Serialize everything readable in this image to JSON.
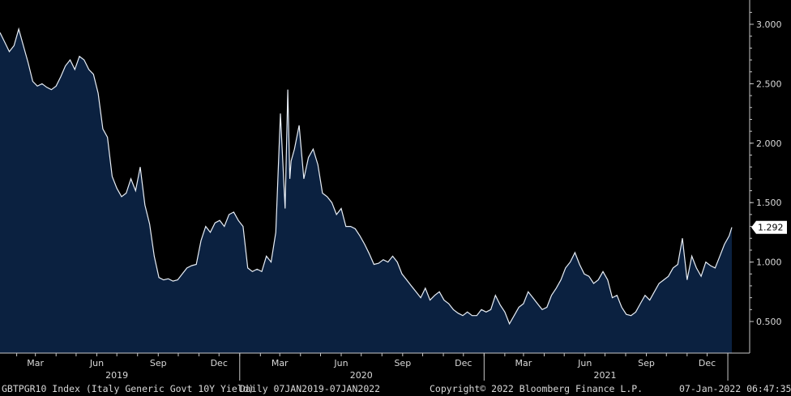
{
  "chart_data": {
    "type": "area",
    "title": "GBTPGR10 Index (Italy Generic Govt 10Y Yield)",
    "frequency": "Daily",
    "date_range": "07JAN2019-07JAN2022",
    "ylim": [
      0.25,
      3.2
    ],
    "y_ticks": [
      "3.000",
      "2.500",
      "2.000",
      "1.500",
      "1.000",
      "0.500"
    ],
    "y_tick_values": [
      3.0,
      2.5,
      2.0,
      1.5,
      1.0,
      0.5
    ],
    "x_tick_labels": [
      "Mar",
      "Jun",
      "Sep",
      "Dec",
      "Mar",
      "Jun",
      "Sep",
      "Dec",
      "Mar",
      "Jun",
      "Sep",
      "Dec"
    ],
    "x_tick_dates": [
      "2019-03-01",
      "2019-06-01",
      "2019-09-01",
      "2019-12-01",
      "2020-03-01",
      "2020-06-01",
      "2020-09-01",
      "2020-12-01",
      "2021-03-01",
      "2021-06-01",
      "2021-09-01",
      "2021-12-01"
    ],
    "year_labels": [
      "2019",
      "2020",
      "2021"
    ],
    "year_dates": [
      "2019-07-01",
      "2020-07-01",
      "2021-07-01"
    ],
    "year_boundaries": [
      "2020-01-01",
      "2021-01-01",
      "2022-01-01"
    ],
    "last_value": "1.292",
    "x": [
      "2019-01-07",
      "2019-01-14",
      "2019-01-21",
      "2019-01-28",
      "2019-02-04",
      "2019-02-11",
      "2019-02-18",
      "2019-02-25",
      "2019-03-04",
      "2019-03-11",
      "2019-03-18",
      "2019-03-25",
      "2019-04-01",
      "2019-04-08",
      "2019-04-15",
      "2019-04-22",
      "2019-04-29",
      "2019-05-06",
      "2019-05-13",
      "2019-05-20",
      "2019-05-27",
      "2019-06-03",
      "2019-06-10",
      "2019-06-17",
      "2019-06-24",
      "2019-07-01",
      "2019-07-08",
      "2019-07-15",
      "2019-07-22",
      "2019-07-29",
      "2019-08-05",
      "2019-08-12",
      "2019-08-19",
      "2019-08-26",
      "2019-09-02",
      "2019-09-09",
      "2019-09-16",
      "2019-09-23",
      "2019-09-30",
      "2019-10-07",
      "2019-10-14",
      "2019-10-21",
      "2019-10-28",
      "2019-11-04",
      "2019-11-11",
      "2019-11-18",
      "2019-11-25",
      "2019-12-02",
      "2019-12-09",
      "2019-12-16",
      "2019-12-23",
      "2019-12-30",
      "2020-01-06",
      "2020-01-13",
      "2020-01-20",
      "2020-01-27",
      "2020-02-03",
      "2020-02-10",
      "2020-02-17",
      "2020-02-24",
      "2020-03-02",
      "2020-03-09",
      "2020-03-13",
      "2020-03-16",
      "2020-03-18",
      "2020-03-23",
      "2020-03-30",
      "2020-04-06",
      "2020-04-13",
      "2020-04-20",
      "2020-04-27",
      "2020-05-04",
      "2020-05-11",
      "2020-05-18",
      "2020-05-25",
      "2020-06-01",
      "2020-06-08",
      "2020-06-15",
      "2020-06-22",
      "2020-06-29",
      "2020-07-06",
      "2020-07-13",
      "2020-07-20",
      "2020-07-27",
      "2020-08-03",
      "2020-08-10",
      "2020-08-17",
      "2020-08-24",
      "2020-08-31",
      "2020-09-07",
      "2020-09-14",
      "2020-09-21",
      "2020-09-28",
      "2020-10-05",
      "2020-10-12",
      "2020-10-19",
      "2020-10-26",
      "2020-11-02",
      "2020-11-09",
      "2020-11-16",
      "2020-11-23",
      "2020-11-30",
      "2020-12-07",
      "2020-12-14",
      "2020-12-21",
      "2020-12-28",
      "2021-01-04",
      "2021-01-11",
      "2021-01-18",
      "2021-01-25",
      "2021-02-01",
      "2021-02-08",
      "2021-02-15",
      "2021-02-22",
      "2021-03-01",
      "2021-03-08",
      "2021-03-15",
      "2021-03-22",
      "2021-03-29",
      "2021-04-05",
      "2021-04-12",
      "2021-04-19",
      "2021-04-26",
      "2021-05-03",
      "2021-05-10",
      "2021-05-17",
      "2021-05-24",
      "2021-05-31",
      "2021-06-07",
      "2021-06-14",
      "2021-06-21",
      "2021-06-28",
      "2021-07-05",
      "2021-07-12",
      "2021-07-19",
      "2021-07-26",
      "2021-08-02",
      "2021-08-09",
      "2021-08-16",
      "2021-08-23",
      "2021-08-30",
      "2021-09-06",
      "2021-09-13",
      "2021-09-20",
      "2021-09-27",
      "2021-10-04",
      "2021-10-11",
      "2021-10-18",
      "2021-10-25",
      "2021-11-01",
      "2021-11-08",
      "2021-11-15",
      "2021-11-22",
      "2021-11-29",
      "2021-12-06",
      "2021-12-13",
      "2021-12-20",
      "2021-12-27",
      "2022-01-03",
      "2022-01-07"
    ],
    "series": [
      {
        "values": [
          2.93,
          2.85,
          2.77,
          2.82,
          2.96,
          2.82,
          2.68,
          2.52,
          2.48,
          2.5,
          2.47,
          2.45,
          2.48,
          2.56,
          2.65,
          2.7,
          2.62,
          2.73,
          2.7,
          2.62,
          2.58,
          2.42,
          2.12,
          2.05,
          1.72,
          1.62,
          1.55,
          1.58,
          1.7,
          1.6,
          1.8,
          1.48,
          1.32,
          1.05,
          0.87,
          0.85,
          0.86,
          0.84,
          0.85,
          0.9,
          0.95,
          0.97,
          0.98,
          1.18,
          1.3,
          1.25,
          1.33,
          1.35,
          1.3,
          1.4,
          1.42,
          1.35,
          1.3,
          0.95,
          0.92,
          0.94,
          0.92,
          1.05,
          1.0,
          1.25,
          2.25,
          1.45,
          2.45,
          1.7,
          1.85,
          1.95,
          2.15,
          1.7,
          1.88,
          1.95,
          1.82,
          1.58,
          1.55,
          1.5,
          1.4,
          1.45,
          1.3,
          1.3,
          1.28,
          1.22,
          1.15,
          1.07,
          0.98,
          0.99,
          1.02,
          1.0,
          1.05,
          1.0,
          0.9,
          0.85,
          0.8,
          0.75,
          0.7,
          0.78,
          0.68,
          0.72,
          0.75,
          0.68,
          0.65,
          0.6,
          0.57,
          0.55,
          0.58,
          0.55,
          0.55,
          0.6,
          0.58,
          0.6,
          0.72,
          0.64,
          0.58,
          0.48,
          0.55,
          0.62,
          0.65,
          0.75,
          0.7,
          0.65,
          0.6,
          0.62,
          0.72,
          0.78,
          0.85,
          0.95,
          1.0,
          1.08,
          0.98,
          0.9,
          0.88,
          0.82,
          0.85,
          0.92,
          0.85,
          0.7,
          0.72,
          0.62,
          0.56,
          0.55,
          0.58,
          0.65,
          0.72,
          0.68,
          0.75,
          0.82,
          0.85,
          0.88,
          0.95,
          0.98,
          1.2,
          0.85,
          1.05,
          0.95,
          0.88,
          1.0,
          0.97,
          0.95,
          1.05,
          1.15,
          1.22,
          1.292
        ]
      }
    ]
  },
  "footer": {
    "ticker": "GBTPGR10 Index (Italy Generic Govt 10Y Yield)",
    "range": "Daily 07JAN2019-07JAN2022",
    "copyright": "Copyright© 2022 Bloomberg Finance L.P.",
    "timestamp": "07-Jan-2022 06:47:35"
  },
  "colors": {
    "background": "#000000",
    "area_fill": "#0b2140",
    "line": "#e8eef6",
    "axis": "#c8c8c8",
    "text": "#d8d8d8",
    "value_tag_bg": "#ffffff",
    "value_tag_text": "#000000"
  }
}
